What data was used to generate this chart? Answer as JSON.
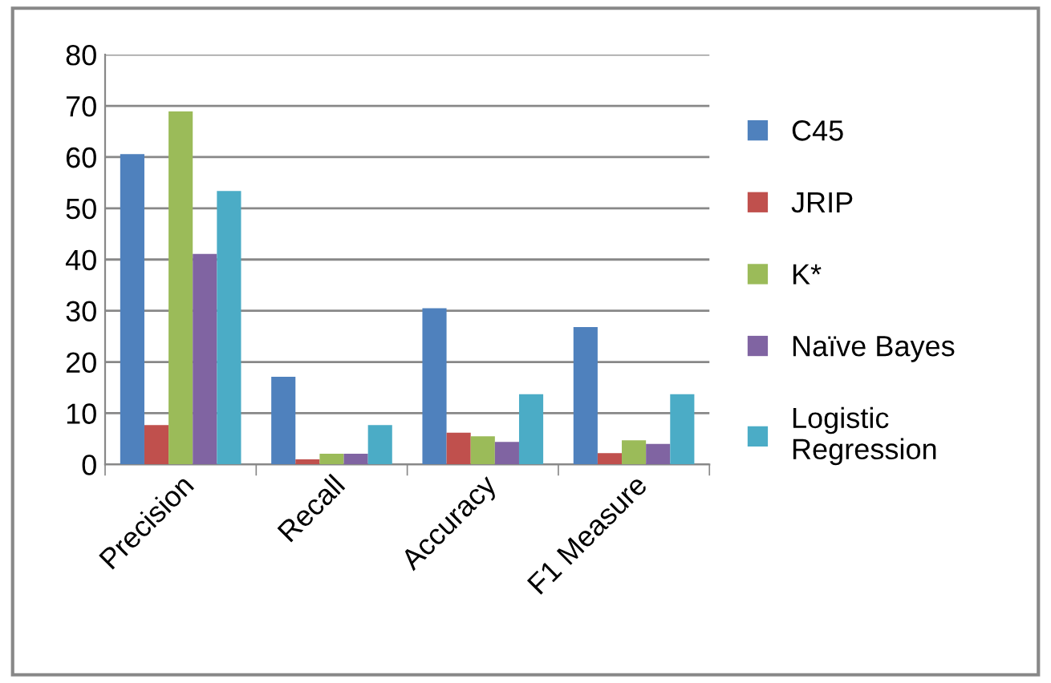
{
  "chart_data": {
    "type": "bar",
    "categories": [
      "Precision",
      "Recall",
      "Accuracy",
      "F1 Measure"
    ],
    "series": [
      {
        "name": "C45",
        "color": "#4f81bd",
        "values": [
          60.6,
          17.1,
          30.5,
          26.8
        ]
      },
      {
        "name": "JRIP",
        "color": "#c0504d",
        "values": [
          7.7,
          1.0,
          6.2,
          2.2
        ]
      },
      {
        "name": "K*",
        "color": "#9bbb59",
        "values": [
          68.9,
          2.1,
          5.5,
          4.7
        ]
      },
      {
        "name": "Naïve Bayes",
        "color": "#8064a2",
        "values": [
          41.1,
          2.1,
          4.4,
          4.0
        ]
      },
      {
        "name": "Logistic\nRegression",
        "color": "#4bacc6",
        "values": [
          53.4,
          7.7,
          13.7,
          13.7
        ]
      }
    ],
    "ylim": [
      0,
      80
    ],
    "yticks": [
      0,
      10,
      20,
      30,
      40,
      50,
      60,
      70,
      80
    ],
    "grid": "y",
    "legend": "right"
  }
}
